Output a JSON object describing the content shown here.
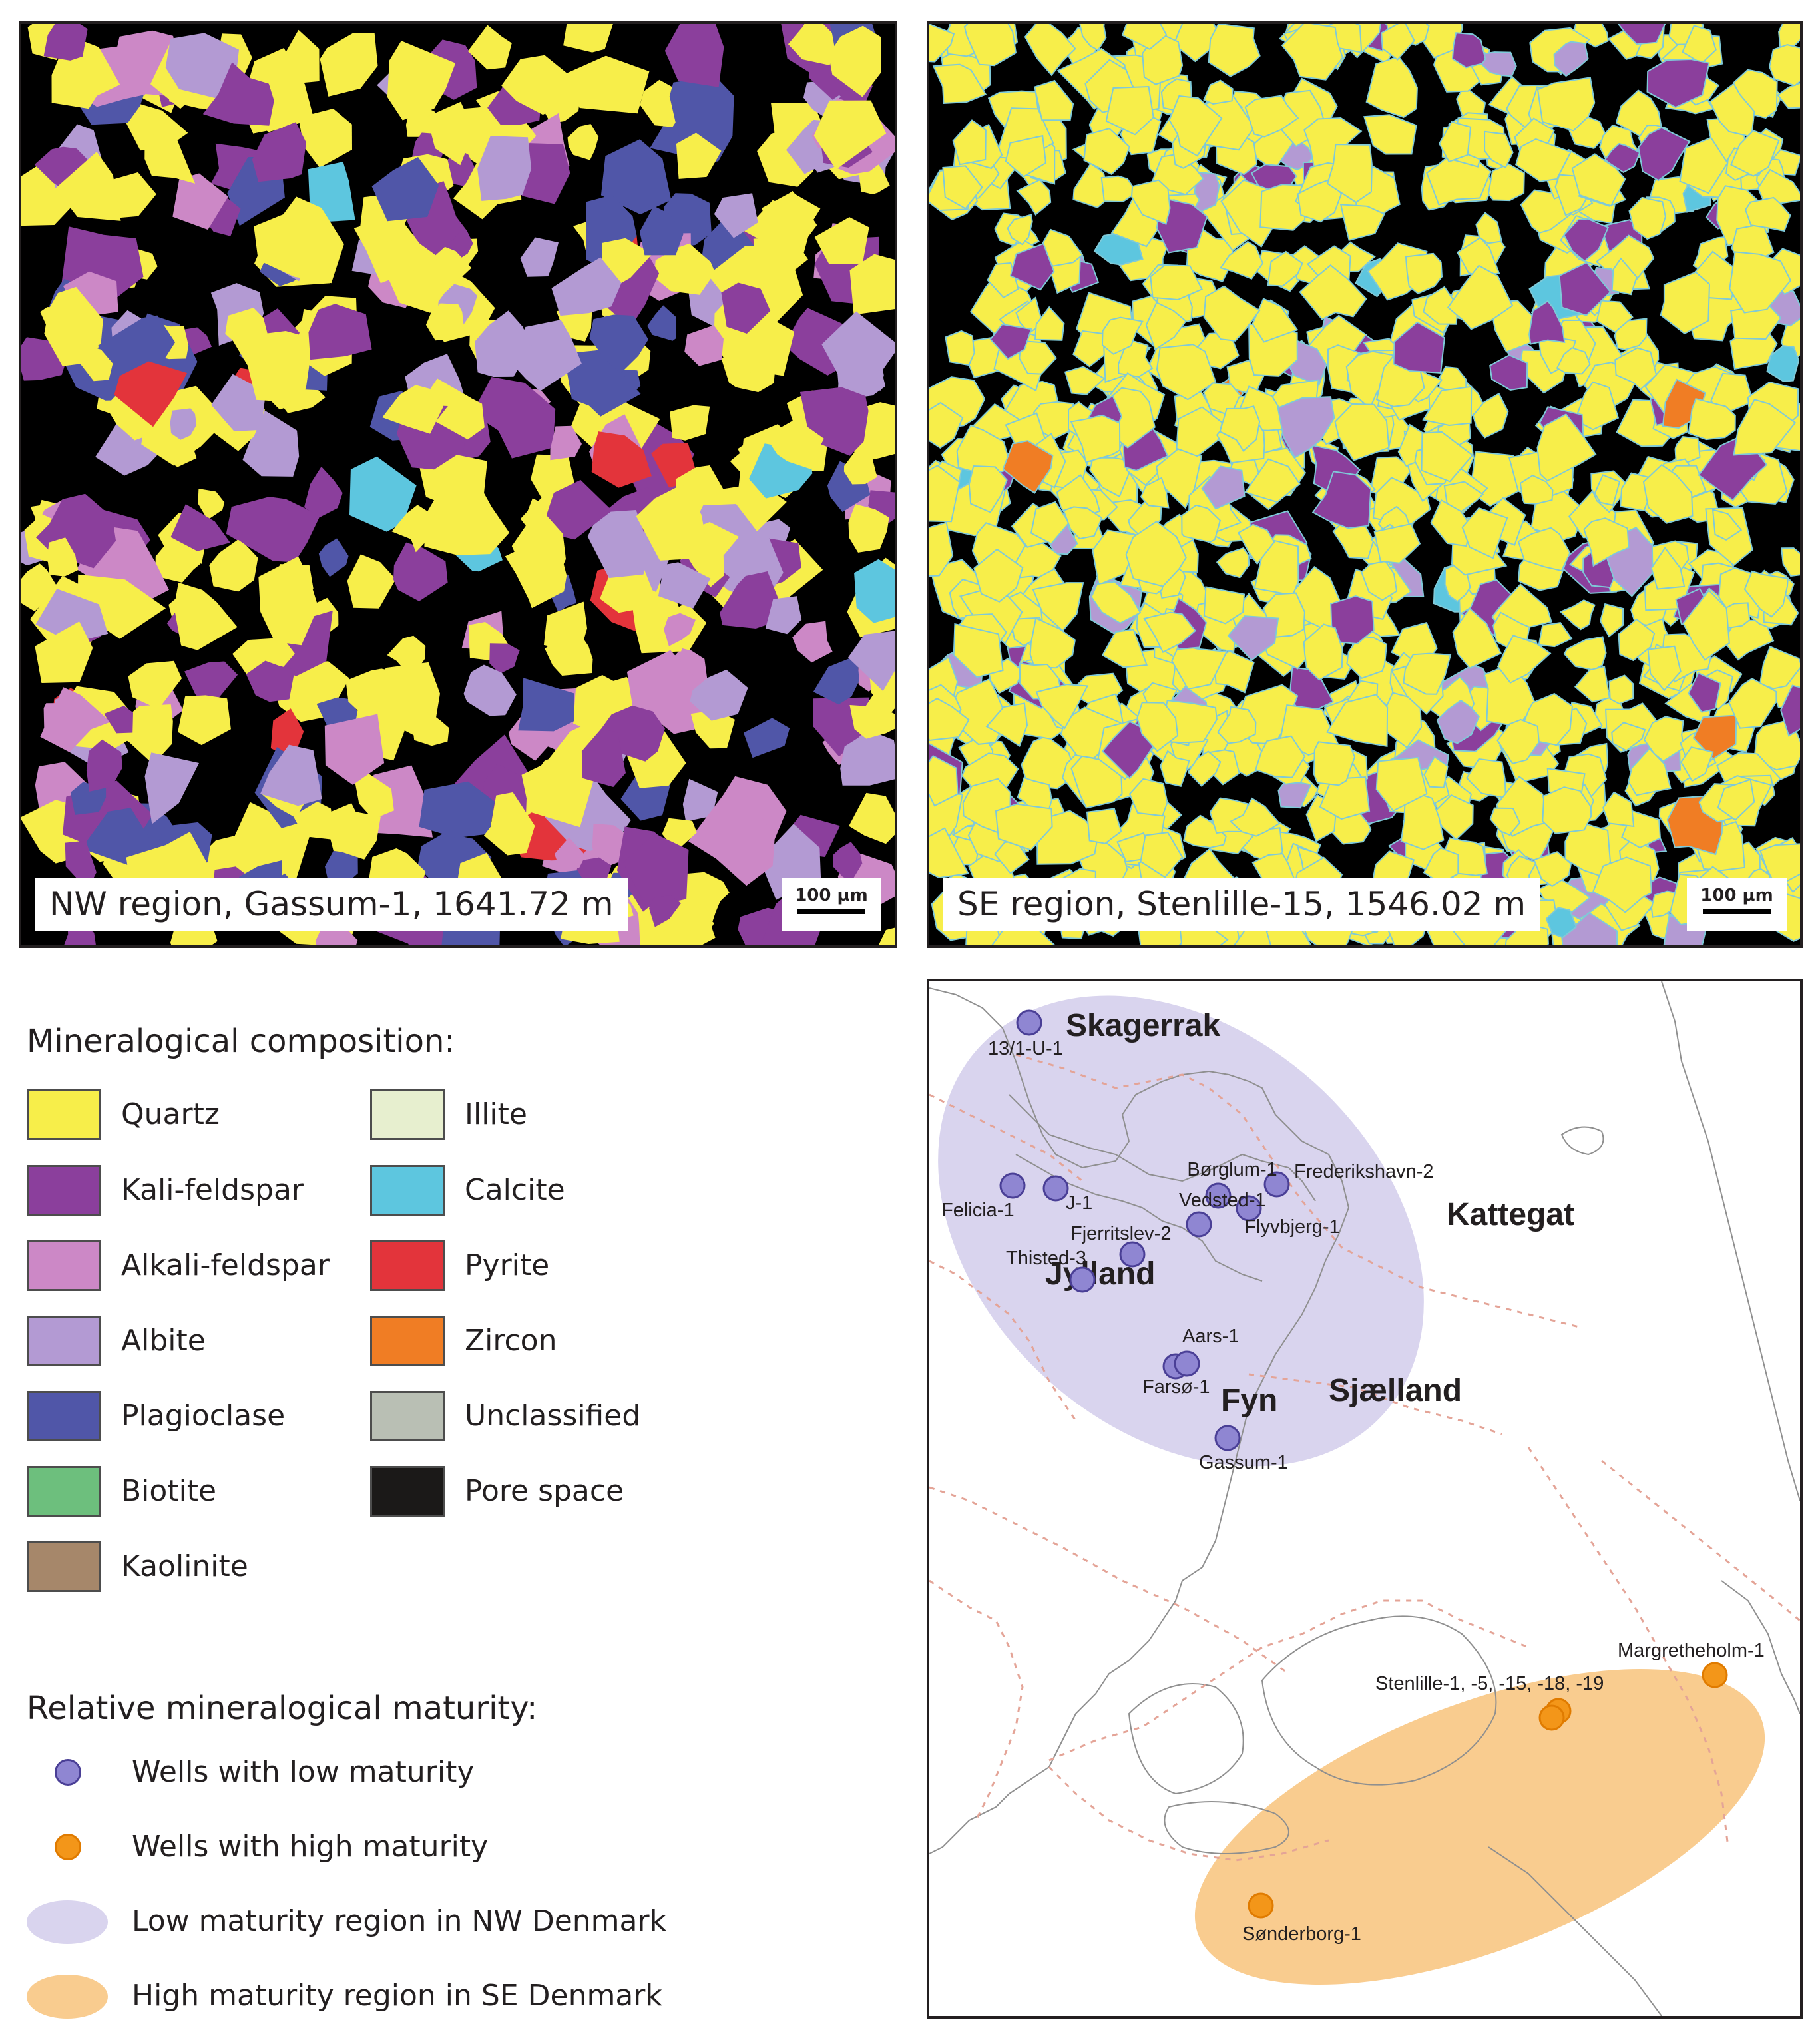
{
  "panels": {
    "nw": {
      "caption": "NW region, Gassum-1, 1641.72 m",
      "scale": "100 µm"
    },
    "se": {
      "caption": "SE region, Stenlille-15, 1546.02 m",
      "scale": "100 µm"
    }
  },
  "legend": {
    "mineral_title": "Mineralogical composition:",
    "minerals": [
      {
        "label": "Quartz",
        "color": "#f7ee4a"
      },
      {
        "label": "Kali-feldspar",
        "color": "#8b3f9c"
      },
      {
        "label": "Alkali-feldspar",
        "color": "#cc88c6"
      },
      {
        "label": "Albite",
        "color": "#b39ad3"
      },
      {
        "label": "Plagioclase",
        "color": "#5056a8"
      },
      {
        "label": "Biotite",
        "color": "#6dbf7d"
      },
      {
        "label": "Kaolinite",
        "color": "#a6876a"
      },
      {
        "label": "Illite",
        "color": "#e7efcf"
      },
      {
        "label": "Calcite",
        "color": "#5dc6df"
      },
      {
        "label": "Pyrite",
        "color": "#e3343b"
      },
      {
        "label": "Zircon",
        "color": "#f07d24"
      },
      {
        "label": "Unclassified",
        "color": "#b9bfb4"
      },
      {
        "label": "Pore space",
        "color": "#1b1918"
      }
    ],
    "maturity_title": "Relative mineralogical maturity:",
    "maturity": [
      {
        "label": "Wells with low maturity",
        "color": "#8f86d2"
      },
      {
        "label": "Wells with high maturity",
        "color": "#f39619"
      },
      {
        "label": "Low maturity region in NW Denmark",
        "color": "#d9d4ee"
      },
      {
        "label": "High maturity region in SE Denmark",
        "color": "#f9cc8f"
      }
    ]
  },
  "map": {
    "region_labels": [
      "Skagerrak",
      "Kattegat",
      "Jylland",
      "Fyn",
      "Sjælland"
    ],
    "wells_low": [
      "13/1-U-1",
      "Felicia-1",
      "J-1",
      "Børglum-1",
      "Frederikshavn-2",
      "Vedsted-1",
      "Flyvbjerg-1",
      "Fjerritslev-2",
      "Thisted-3",
      "Aars-1",
      "Farsø-1",
      "Gassum-1"
    ],
    "wells_high": [
      "Margretheholm-1",
      "Stenlille-1, -5, -15, -18, -19",
      "Sønderborg-1"
    ]
  }
}
